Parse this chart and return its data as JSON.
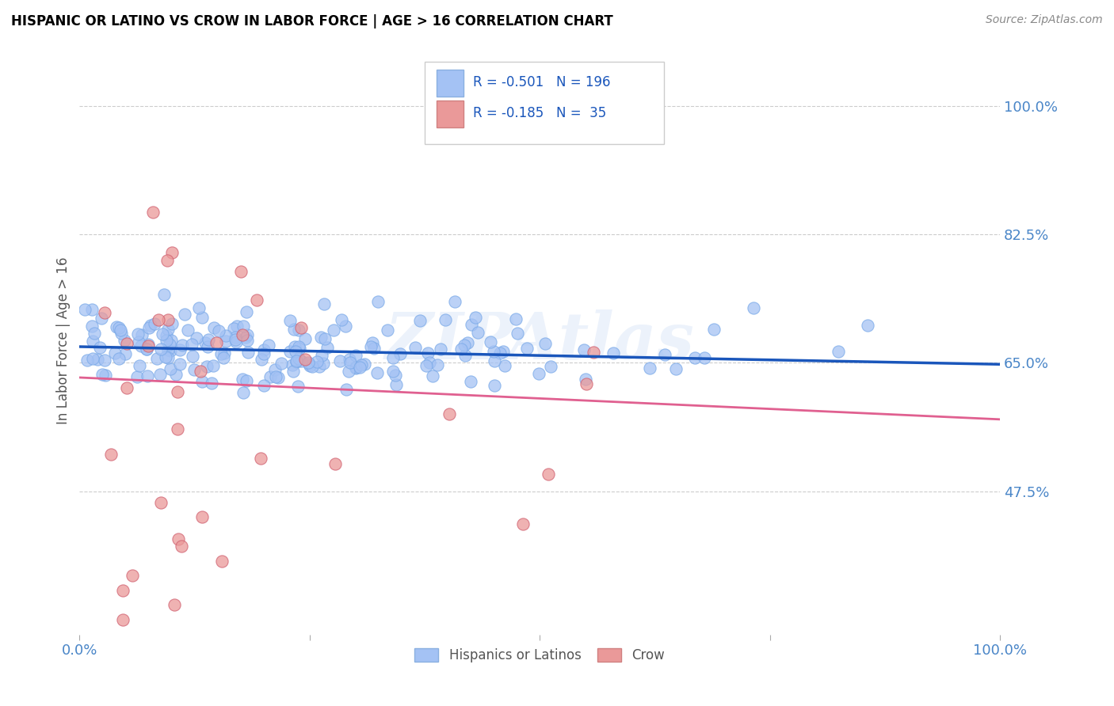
{
  "title": "HISPANIC OR LATINO VS CROW IN LABOR FORCE | AGE > 16 CORRELATION CHART",
  "source": "Source: ZipAtlas.com",
  "ylabel": "In Labor Force | Age > 16",
  "ytick_labels": [
    "100.0%",
    "82.5%",
    "65.0%",
    "47.5%"
  ],
  "ytick_values": [
    1.0,
    0.825,
    0.65,
    0.475
  ],
  "xlim": [
    0.0,
    1.0
  ],
  "ylim": [
    0.28,
    1.08
  ],
  "legend_blue_R": "-0.501",
  "legend_blue_N": "196",
  "legend_pink_R": "-0.185",
  "legend_pink_N": " 35",
  "legend_label_blue": "Hispanics or Latinos",
  "legend_label_pink": "Crow",
  "blue_color": "#a4c2f4",
  "pink_color": "#ea9999",
  "blue_line_color": "#1a56bb",
  "pink_line_color": "#e06090",
  "watermark": "ZIPAtlas",
  "blue_trend_x0": 0.0,
  "blue_trend_y0": 0.672,
  "blue_trend_x1": 1.0,
  "blue_trend_y1": 0.648,
  "pink_trend_x0": 0.0,
  "pink_trend_y0": 0.63,
  "pink_trend_x1": 1.0,
  "pink_trend_y1": 0.573,
  "title_color": "#000000",
  "source_color": "#888888",
  "axis_label_color": "#4a86c8",
  "grid_color": "#cccccc",
  "background_color": "#ffffff"
}
